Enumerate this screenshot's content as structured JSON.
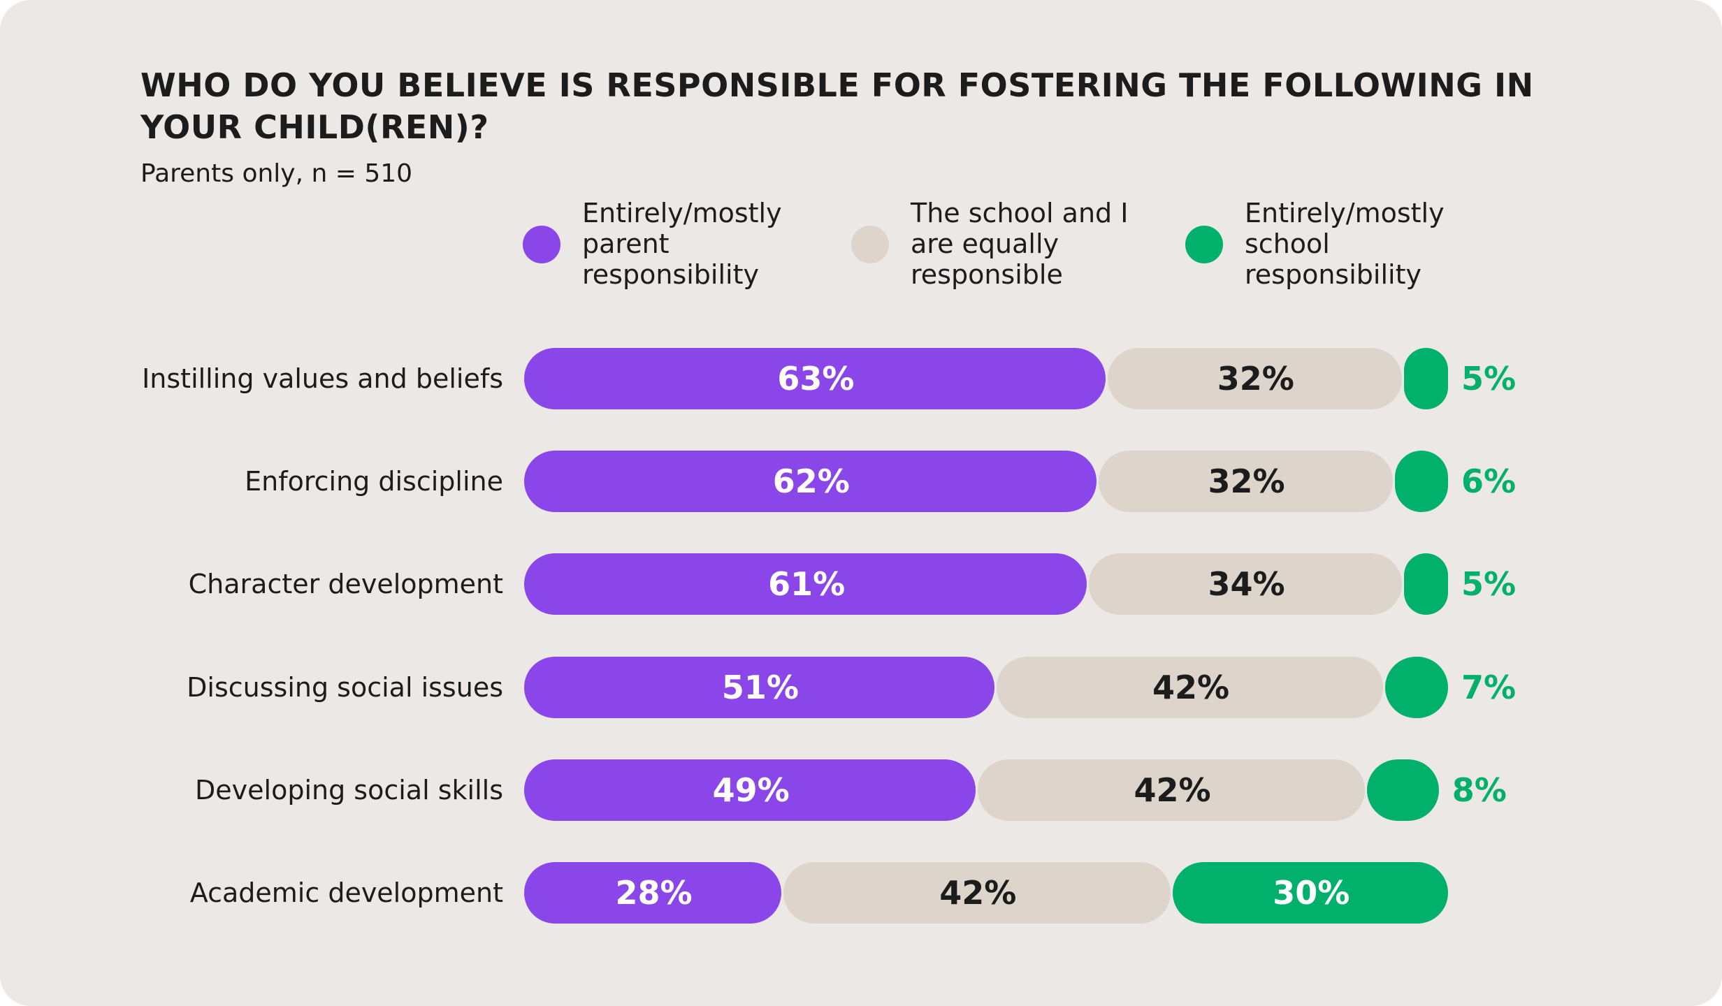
{
  "chart_data": {
    "type": "stacked-bar-horizontal",
    "title": "WHO DO YOU BELIEVE IS RESPONSIBLE FOR FOSTERING THE FOLLOWING IN YOUR CHILD(REN)?",
    "subtitle": "Parents only, n = 510",
    "categories": [
      "Instilling values and beliefs",
      "Enforcing discipline",
      "Character development",
      "Discussing social issues",
      "Developing social skills",
      "Academic development"
    ],
    "series": [
      {
        "name": "Entirely/mostly parent responsibility",
        "color": "#8a46e8",
        "values": [
          63,
          62,
          61,
          51,
          49,
          28
        ],
        "value_labels": [
          "63%",
          "62%",
          "61%",
          "51%",
          "49%",
          "28%"
        ]
      },
      {
        "name": "The school and I are equally responsible",
        "color": "#ddd5cc",
        "values": [
          32,
          32,
          34,
          42,
          42,
          42
        ],
        "value_labels": [
          "32%",
          "32%",
          "34%",
          "42%",
          "42%",
          "42%"
        ]
      },
      {
        "name": "Entirely/mostly school responsibility",
        "color": "#00b06b",
        "values": [
          5,
          6,
          5,
          7,
          8,
          30
        ],
        "value_labels": [
          "5%",
          "6%",
          "5%",
          "7%",
          "8%",
          "30%"
        ]
      }
    ],
    "xlim": [
      0,
      100
    ]
  }
}
